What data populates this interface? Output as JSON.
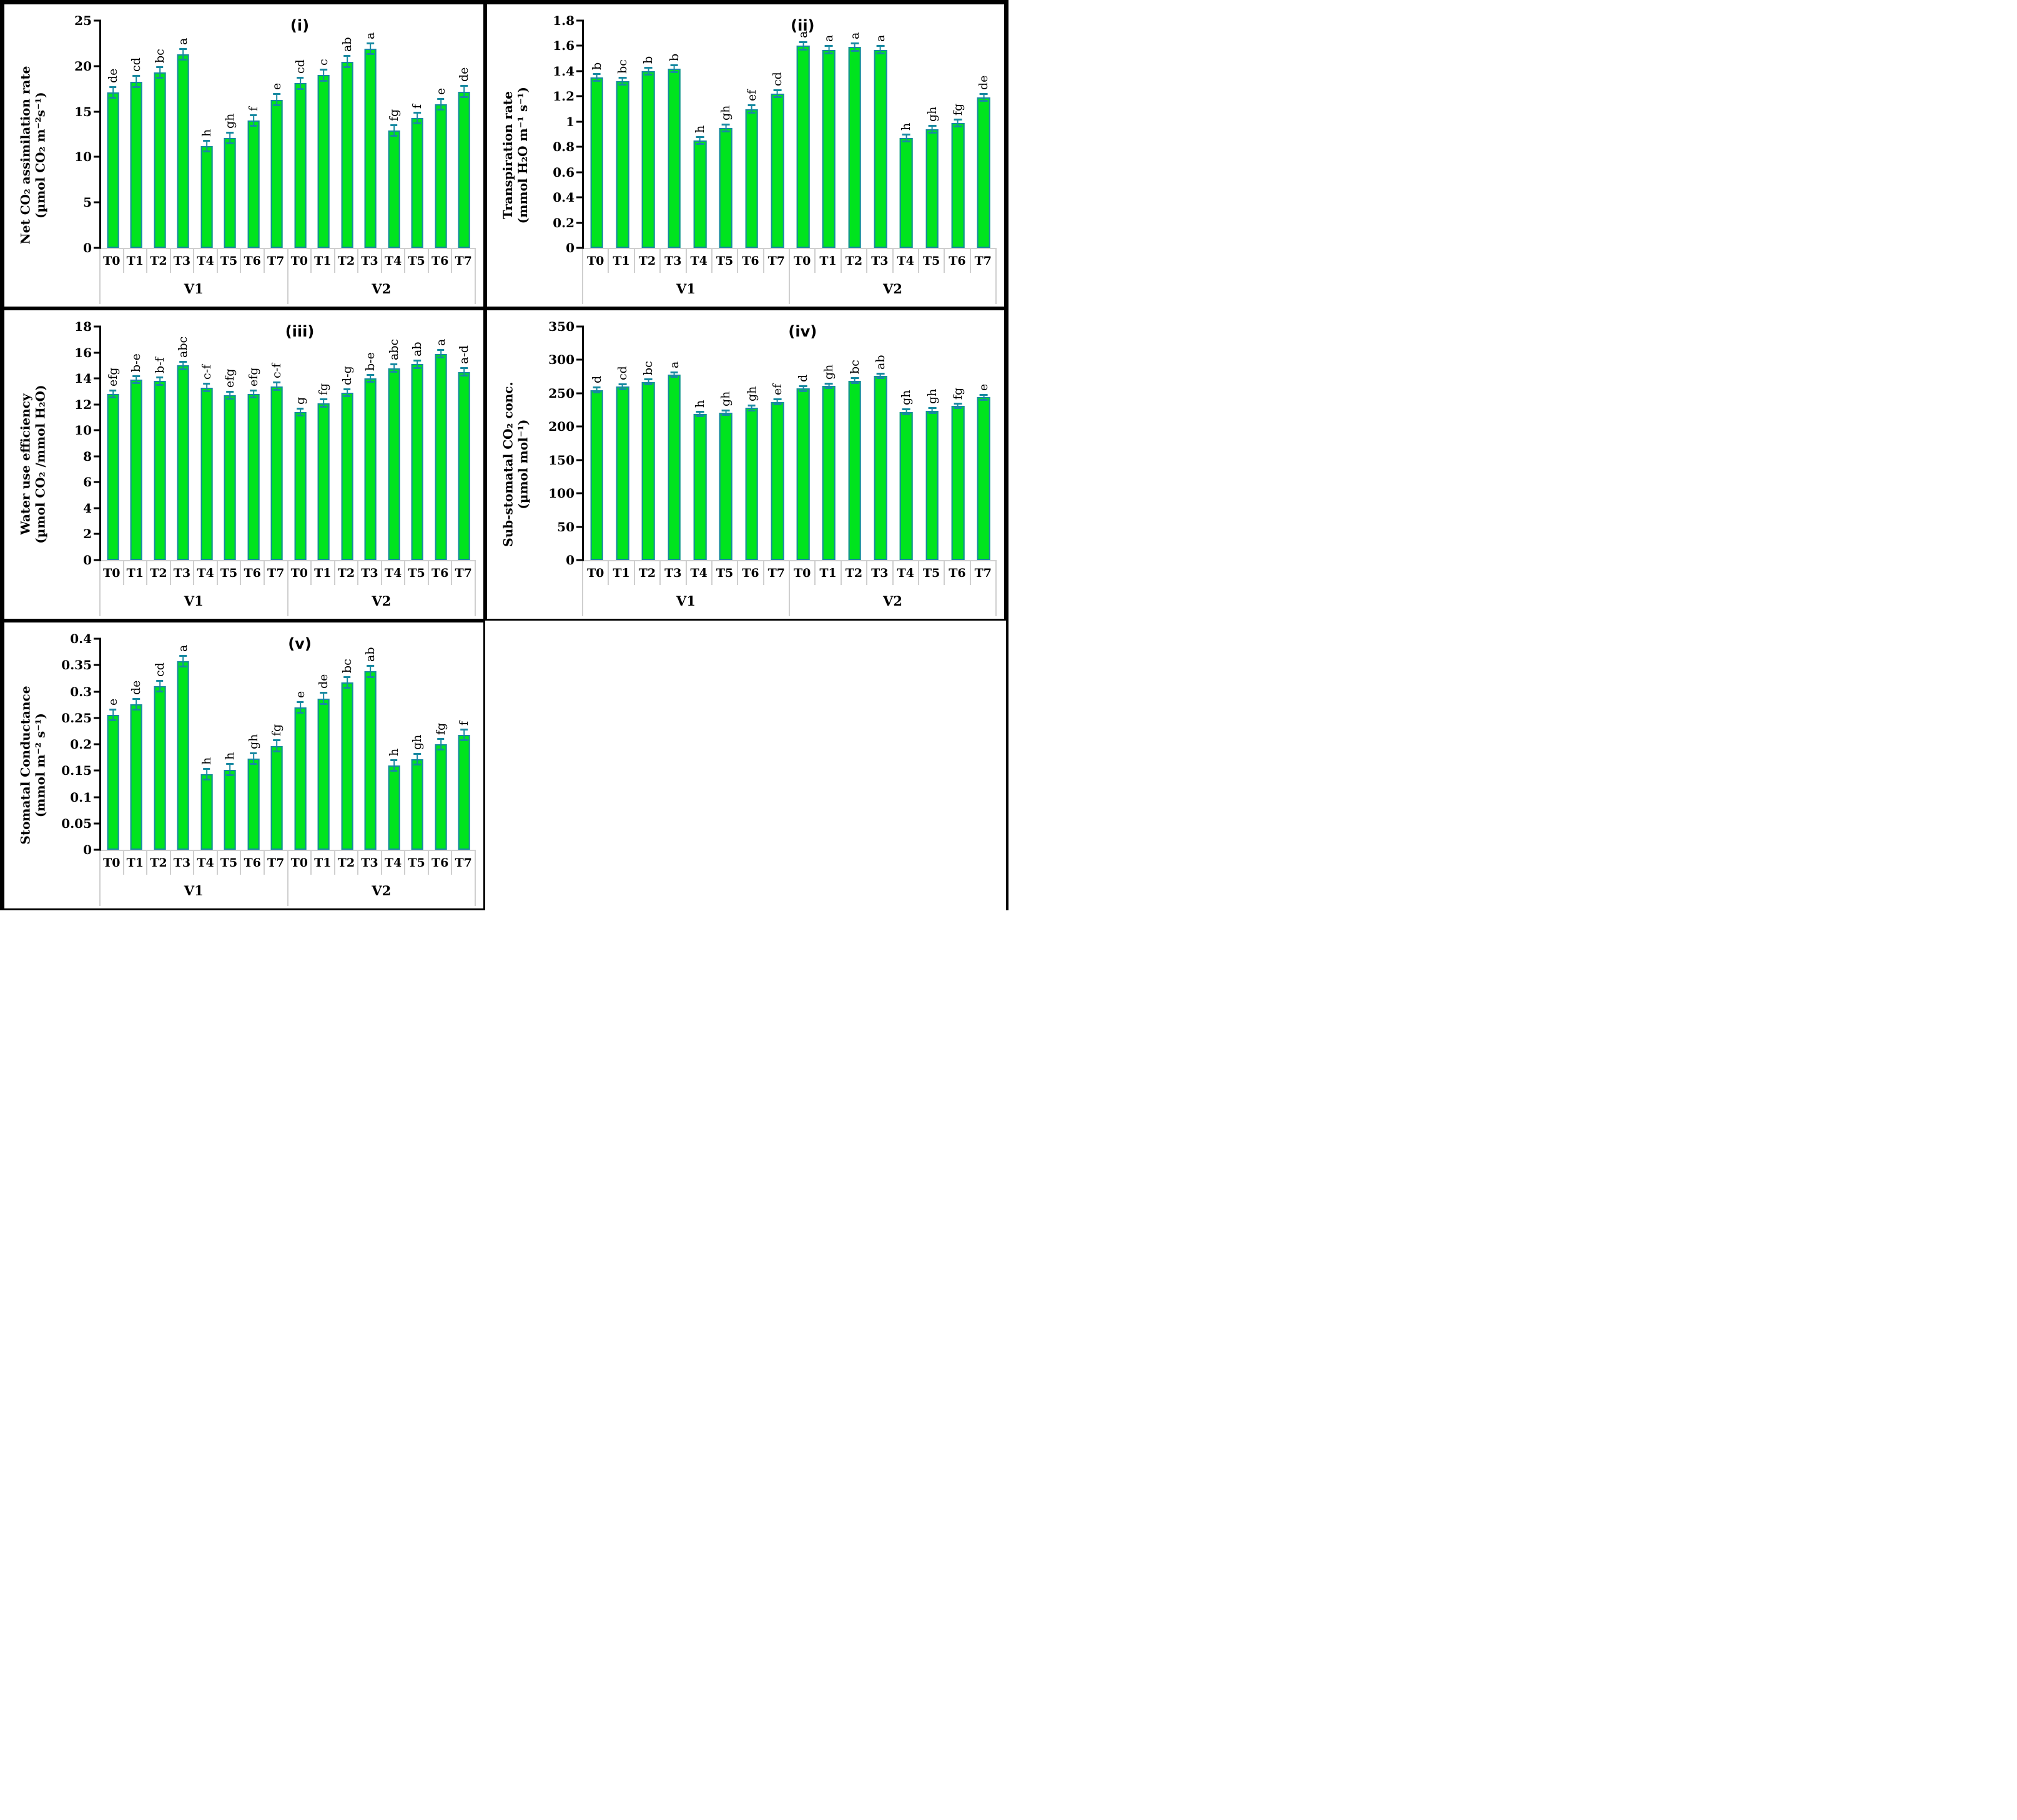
{
  "figure": {
    "groups": [
      "V1",
      "V2"
    ],
    "categories": [
      "T0",
      "T1",
      "T2",
      "T3",
      "T4",
      "T5",
      "T6",
      "T7"
    ],
    "colors": {
      "bar_fill": "#00E41E",
      "bar_border": "#1789A1",
      "error_bar": "#1789A1",
      "axis_line": "#000000",
      "table_line": "#CFCFCF"
    }
  },
  "chart_data": [
    {
      "id": "i",
      "type": "bar",
      "panel_label": "(i)",
      "ylabel_line1": "Net CO₂ assimilation rate",
      "ylabel_line2": "(µmol CO₂ m⁻²s⁻¹)",
      "ylim": [
        0,
        25
      ],
      "ytick_step": 5,
      "error_bar": 0.7,
      "categories": [
        "T0",
        "T1",
        "T2",
        "T3",
        "T4",
        "T5",
        "T6",
        "T7"
      ],
      "series": [
        {
          "name": "V1",
          "values": [
            17.1,
            18.3,
            19.3,
            21.3,
            11.2,
            12.1,
            14.0,
            16.3
          ],
          "letters": [
            "de",
            "cd",
            "bc",
            "a",
            "h",
            "gh",
            "f",
            "e"
          ]
        },
        {
          "name": "V2",
          "values": [
            18.1,
            19.0,
            20.5,
            21.9,
            12.9,
            14.3,
            15.8,
            17.2
          ],
          "letters": [
            "cd",
            "c",
            "ab",
            "a",
            "fg",
            "f",
            "e",
            "de"
          ]
        }
      ]
    },
    {
      "id": "ii",
      "type": "bar",
      "panel_label": "(ii)",
      "ylabel_line1": "Transpiration rate",
      "ylabel_line2": "(mmol H₂O m⁻¹ s⁻¹)",
      "ylim": [
        0,
        1.8
      ],
      "ytick_step": 0.2,
      "error_bar": 0.035,
      "categories": [
        "T0",
        "T1",
        "T2",
        "T3",
        "T4",
        "T5",
        "T6",
        "T7"
      ],
      "series": [
        {
          "name": "V1",
          "values": [
            1.35,
            1.32,
            1.4,
            1.42,
            0.85,
            0.95,
            1.1,
            1.22
          ],
          "letters": [
            "b",
            "bc",
            "b",
            "b",
            "h",
            "gh",
            "ef",
            "cd"
          ]
        },
        {
          "name": "V2",
          "values": [
            1.6,
            1.57,
            1.59,
            1.57,
            0.87,
            0.94,
            0.99,
            1.19
          ],
          "letters": [
            "a",
            "a",
            "a",
            "a",
            "h",
            "gh",
            "fg",
            "de"
          ]
        }
      ]
    },
    {
      "id": "iii",
      "type": "bar",
      "panel_label": "(iii)",
      "ylabel_line1": "Water use efficiency",
      "ylabel_line2": "(µmol CO₂ /mmol H₂O)",
      "ylim": [
        0,
        18
      ],
      "ytick_step": 2,
      "error_bar": 0.35,
      "categories": [
        "T0",
        "T1",
        "T2",
        "T3",
        "T4",
        "T5",
        "T6",
        "T7"
      ],
      "series": [
        {
          "name": "V1",
          "values": [
            12.8,
            13.9,
            13.8,
            15.0,
            13.3,
            12.7,
            12.8,
            13.4
          ],
          "letters": [
            "efg",
            "b-e",
            "b-f",
            "abc",
            "c-f",
            "efg",
            "efg",
            "c-f"
          ]
        },
        {
          "name": "V2",
          "values": [
            11.4,
            12.1,
            12.9,
            14.0,
            14.8,
            15.1,
            15.9,
            14.5
          ],
          "letters": [
            "g",
            "fg",
            "d-g",
            "b-e",
            "abc",
            "ab",
            "a",
            "a-d"
          ]
        }
      ]
    },
    {
      "id": "iv",
      "type": "bar",
      "panel_label": "(iv)",
      "ylabel_line1": "Sub-stomatal CO₂ conc.",
      "ylabel_line2": "(µmol mol⁻¹)",
      "ylim": [
        0,
        350
      ],
      "ytick_step": 50,
      "error_bar": 5,
      "categories": [
        "T0",
        "T1",
        "T2",
        "T3",
        "T4",
        "T5",
        "T6",
        "T7"
      ],
      "series": [
        {
          "name": "V1",
          "values": [
            255,
            260,
            267,
            278,
            219,
            221,
            228,
            237
          ],
          "letters": [
            "d",
            "cd",
            "bc",
            "a",
            "h",
            "gh",
            "gh",
            "ef"
          ]
        },
        {
          "name": "V2",
          "values": [
            257,
            261,
            269,
            276,
            222,
            224,
            231,
            244
          ],
          "letters": [
            "d",
            "gh",
            "bc",
            "ab",
            "gh",
            "gh",
            "fg",
            "e"
          ]
        }
      ]
    },
    {
      "id": "v",
      "type": "bar",
      "panel_label": "(v)",
      "ylabel_line1": "Stomatal Conductance",
      "ylabel_line2": "(mmol m⁻² s⁻¹)",
      "ylim": [
        0,
        0.4
      ],
      "ytick_step": 0.05,
      "error_bar": 0.012,
      "categories": [
        "T0",
        "T1",
        "T2",
        "T3",
        "T4",
        "T5",
        "T6",
        "T7"
      ],
      "series": [
        {
          "name": "V1",
          "values": [
            0.256,
            0.276,
            0.31,
            0.357,
            0.143,
            0.152,
            0.173,
            0.197
          ],
          "letters": [
            "e",
            "de",
            "cd",
            "a",
            "h",
            "h",
            "gh",
            "fg"
          ]
        },
        {
          "name": "V2",
          "values": [
            0.27,
            0.287,
            0.317,
            0.338,
            0.16,
            0.172,
            0.2,
            0.218
          ],
          "letters": [
            "e",
            "de",
            "bc",
            "ab",
            "h",
            "gh",
            "fg",
            "f"
          ]
        }
      ]
    }
  ]
}
